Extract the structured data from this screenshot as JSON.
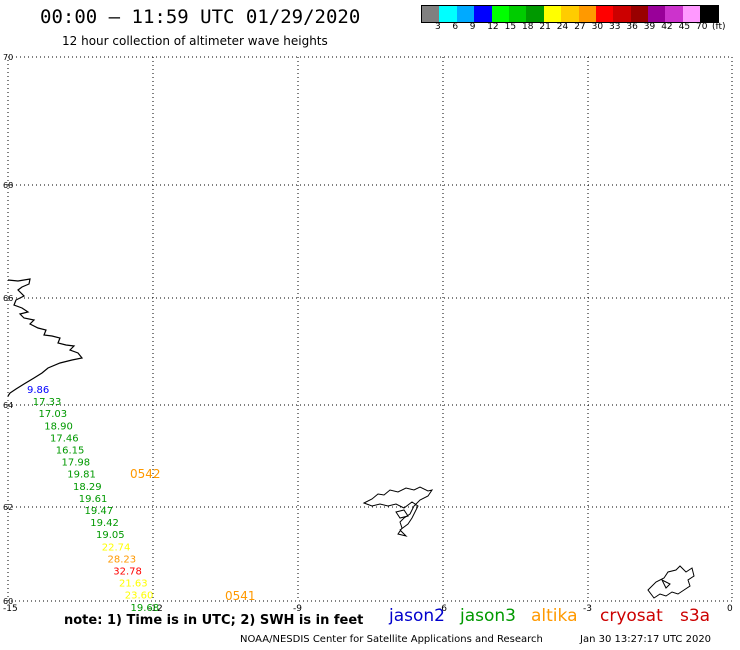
{
  "header": {
    "title": "00:00 – 11:59 UTC 01/29/2020",
    "subtitle": "12 hour collection of altimeter wave heights"
  },
  "legend": {
    "unit": "(ft)",
    "colors": [
      "#808080",
      "#00ffff",
      "#00aaff",
      "#0000ff",
      "#00ff00",
      "#00cc00",
      "#009900",
      "#ffff00",
      "#ffcc00",
      "#ff9900",
      "#ff0000",
      "#cc0000",
      "#990000",
      "#990099",
      "#cc33cc",
      "#ff99ff",
      "#000000"
    ],
    "labels": [
      "3",
      "6",
      "9",
      "12",
      "15",
      "18",
      "21",
      "24",
      "27",
      "30",
      "33",
      "36",
      "39",
      "42",
      "45",
      "70"
    ]
  },
  "map": {
    "lat_ticks": [
      "70",
      "68",
      "66",
      "64",
      "62",
      "60"
    ],
    "lon_ticks": [
      "-15",
      "-12",
      "-9",
      "-6",
      "-3",
      "0"
    ],
    "lat_range": [
      60,
      70
    ],
    "lon_range": [
      -15,
      0
    ],
    "grid": "dotted"
  },
  "observations": [
    {
      "v": "9.86",
      "c": "#0000ff"
    },
    {
      "v": "17.33",
      "c": "#009900"
    },
    {
      "v": "17.03",
      "c": "#009900"
    },
    {
      "v": "18.90",
      "c": "#009900"
    },
    {
      "v": "17.46",
      "c": "#009900"
    },
    {
      "v": "16.15",
      "c": "#009900"
    },
    {
      "v": "17.98",
      "c": "#009900"
    },
    {
      "v": "19.81",
      "c": "#009900"
    },
    {
      "v": "18.29",
      "c": "#009900"
    },
    {
      "v": "19.61",
      "c": "#009900"
    },
    {
      "v": "19.47",
      "c": "#009900"
    },
    {
      "v": "19.42",
      "c": "#009900"
    },
    {
      "v": "19.05",
      "c": "#009900"
    },
    {
      "v": "22.74",
      "c": "#ffff00"
    },
    {
      "v": "28.23",
      "c": "#ff9900"
    },
    {
      "v": "32.78",
      "c": "#ff0000"
    },
    {
      "v": "21.63",
      "c": "#ffff00"
    },
    {
      "v": "23.60",
      "c": "#ffff00"
    },
    {
      "v": "19.68",
      "c": "#009900"
    }
  ],
  "time_tags": [
    {
      "t": "0542",
      "c": "#ff9900"
    },
    {
      "t": "0541",
      "c": "#ff9900"
    }
  ],
  "note": "note: 1) Time is in UTC; 2) SWH is in feet",
  "satellites": [
    {
      "name": "jason2",
      "color": "#0000cc"
    },
    {
      "name": "jason3",
      "color": "#009900"
    },
    {
      "name": "altika",
      "color": "#ff9900"
    },
    {
      "name": "cryosat",
      "color": "#cc0000"
    },
    {
      "name": "s3a",
      "color": "#cc0000"
    }
  ],
  "footer": {
    "credit": "NOAA/NESDIS Center for Satellite Applications and Research",
    "timestamp": "Jan 30 13:27:17 UTC 2020"
  }
}
